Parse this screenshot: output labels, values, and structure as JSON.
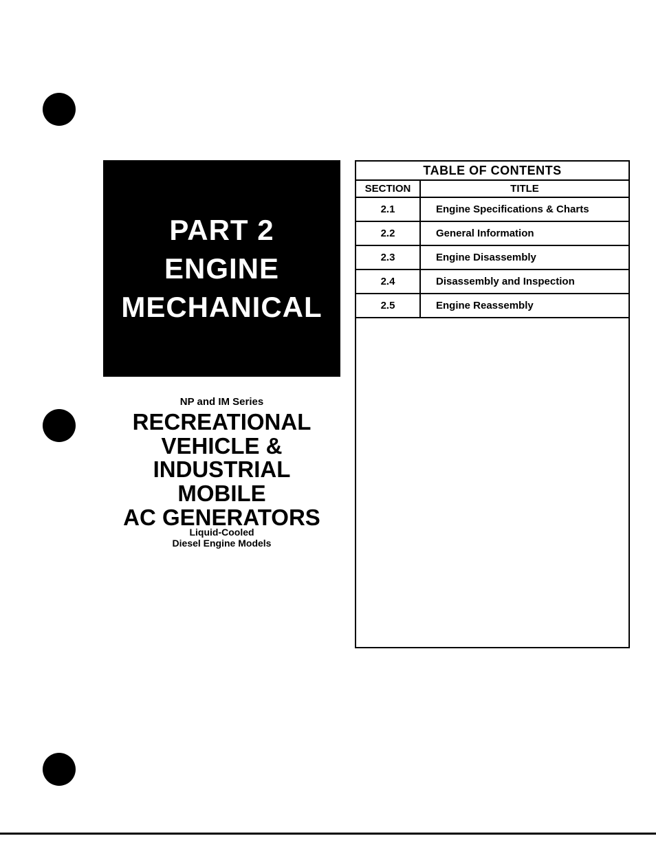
{
  "left": {
    "boxLines": [
      "PART 2",
      "ENGINE",
      "MECHANICAL"
    ],
    "series": "NP and IM Series",
    "productLines": [
      "RECREATIONAL",
      "VEHICLE &",
      "INDUSTRIAL",
      "MOBILE",
      "AC GENERATORS"
    ],
    "subA": "Liquid-Cooled",
    "subB": "Diesel Engine Models"
  },
  "toc": {
    "heading": "TABLE OF CONTENTS",
    "colSection": "SECTION",
    "colTitle": "TITLE",
    "rows": [
      {
        "section": "2.1",
        "title": "Engine Specifications & Charts"
      },
      {
        "section": "2.2",
        "title": "General Information"
      },
      {
        "section": "2.3",
        "title": "Engine Disassembly"
      },
      {
        "section": "2.4",
        "title": "Disassembly and Inspection"
      },
      {
        "section": "2.5",
        "title": "Engine Reassembly"
      }
    ]
  },
  "style": {
    "pageBg": "#ffffff",
    "textColor": "#000000",
    "boxBg": "#000000",
    "boxText": "#ffffff",
    "borderColor": "#000000",
    "boxTitleFontSize": 42,
    "seriesFontSize": 15,
    "productFontSize": 33,
    "subFontSize": 14,
    "tocHeadingFontSize": 18,
    "tocBodyFontSize": 15,
    "punchColor": "#000000"
  }
}
